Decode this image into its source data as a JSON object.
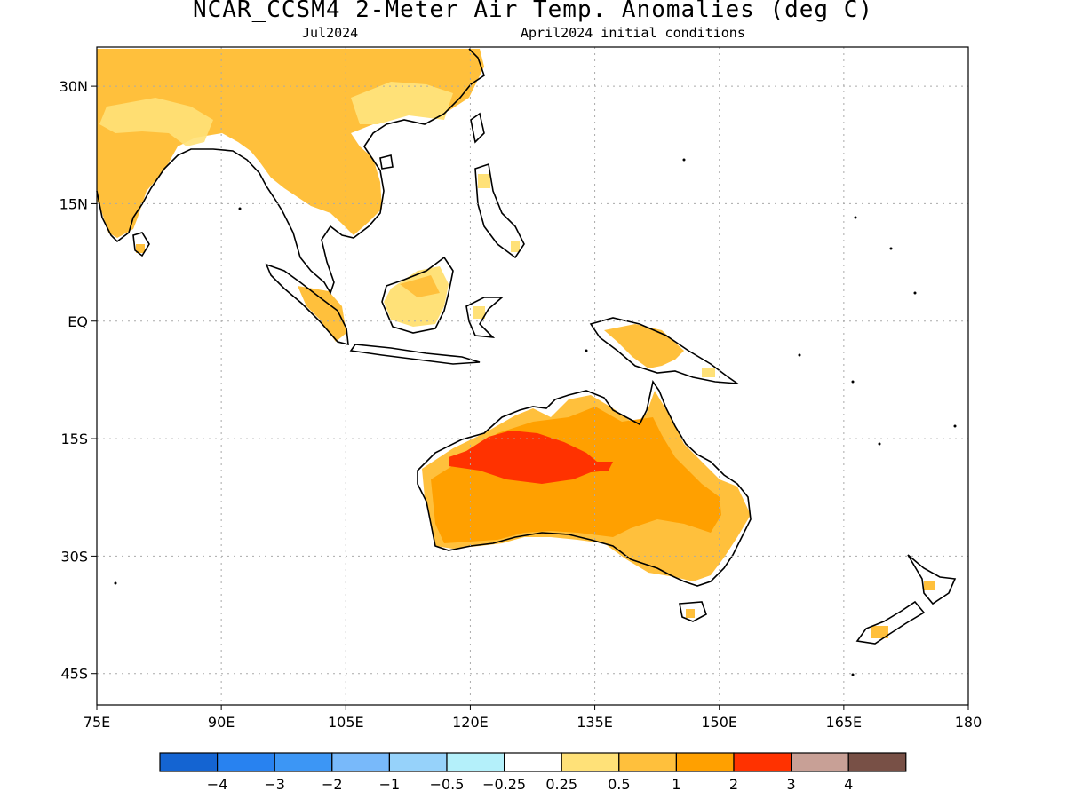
{
  "header": {
    "title": "NCAR_CCSM4 2-Meter Air Temp. Anomalies (deg C)",
    "subtitle_left": "Jul2024",
    "subtitle_right": "April2024 initial conditions"
  },
  "map": {
    "lon_range": [
      75,
      180
    ],
    "lat_range": [
      -49,
      35
    ],
    "lat_ticks": [
      {
        "value": 30,
        "label": "30N"
      },
      {
        "value": 15,
        "label": "15N"
      },
      {
        "value": 0,
        "label": "EQ"
      },
      {
        "value": -15,
        "label": "15S"
      },
      {
        "value": -30,
        "label": "30S"
      },
      {
        "value": -45,
        "label": "45S"
      }
    ],
    "lon_ticks": [
      {
        "value": 75,
        "label": "75E"
      },
      {
        "value": 90,
        "label": "90E"
      },
      {
        "value": 105,
        "label": "105E"
      },
      {
        "value": 120,
        "label": "120E"
      },
      {
        "value": 135,
        "label": "135E"
      },
      {
        "value": 150,
        "label": "150E"
      },
      {
        "value": 165,
        "label": "165E"
      },
      {
        "value": 180,
        "label": "180"
      }
    ],
    "grid": "dotted"
  },
  "colorbar": {
    "colors": [
      "#1464d2",
      "#2882f0",
      "#3c96f5",
      "#78b9fa",
      "#96d2fa",
      "#b4f0fa",
      "#ffffff",
      "#ffe178",
      "#ffc03c",
      "#ffa000",
      "#ff3200",
      "#c8a096",
      "#785046"
    ],
    "labels": [
      "−4",
      "−3",
      "−2",
      "−1",
      "−0.5",
      "−0.25",
      "0.25",
      "0.5",
      "1",
      "2",
      "3",
      "4"
    ]
  }
}
